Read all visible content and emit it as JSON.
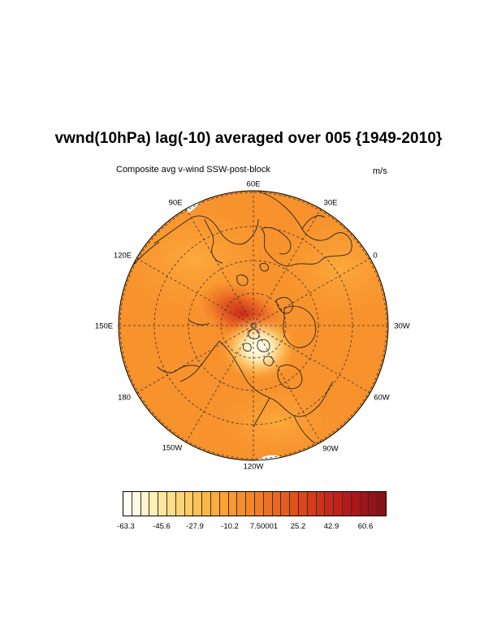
{
  "title": "vwnd(10hPa) lag(-10) averaged over 005 {1949-2010}",
  "left_string": "Composite avg v-wind SSW-post-block",
  "right_string": "m/s",
  "longitude_labels": [
    "60E",
    "30E",
    "0",
    "30W",
    "60W",
    "90W",
    "120W",
    "150W",
    "180",
    "150E",
    "120E",
    "90E"
  ],
  "colorbar": {
    "labels": [
      "-63.3",
      "-45.6",
      "-27.9",
      "-10.2",
      "7.50001",
      "25.2",
      "42.9",
      "60.6"
    ],
    "colors": [
      "#fffff5",
      "#fffbe2",
      "#fff5cc",
      "#ffefb5",
      "#ffe69e",
      "#ffdd88",
      "#ffd474",
      "#ffcb62",
      "#fec152",
      "#feb646",
      "#fdab3c",
      "#fca135",
      "#fa982f",
      "#f88e2b",
      "#f58527",
      "#f27b24",
      "#ee7122",
      "#ea6720",
      "#e65c1e",
      "#e1511c",
      "#dc461b",
      "#d63b1a",
      "#cf3119",
      "#c82819",
      "#c02119",
      "#b71b19",
      "#ad1619",
      "#a21418",
      "#971217",
      "#8b1015"
    ]
  }
}
